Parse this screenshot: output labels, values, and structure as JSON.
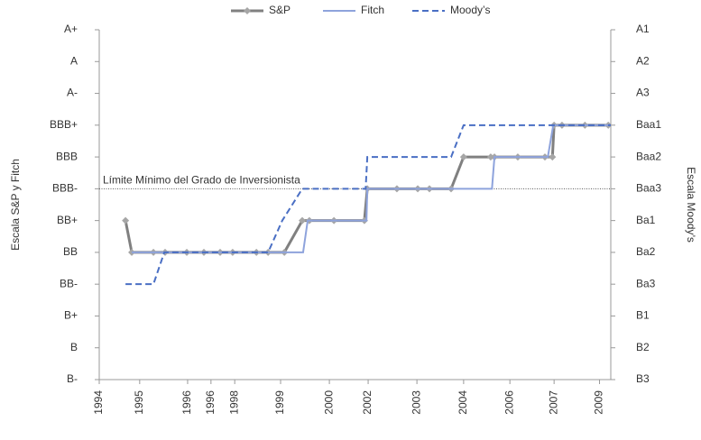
{
  "chart_data": {
    "type": "line",
    "x_label": null,
    "y_label": "Escala S&P y Fitch",
    "y2_label": "Escala Moody’s",
    "annotation": {
      "text": "Límite Mínimo del Grado de Inversionista",
      "value": 6
    },
    "xlim": [
      0,
      12.27
    ],
    "xticks": [
      {
        "value": 0,
        "label": "1994"
      },
      {
        "value": 0.97,
        "label": "1995"
      },
      {
        "value": 2.12,
        "label": "1996"
      },
      {
        "value": 2.68,
        "label": "1996"
      },
      {
        "value": 3.25,
        "label": "1998"
      },
      {
        "value": 4.35,
        "label": "1999"
      },
      {
        "value": 5.52,
        "label": "2000"
      },
      {
        "value": 6.45,
        "label": "2002"
      },
      {
        "value": 7.62,
        "label": "2003"
      },
      {
        "value": 8.74,
        "label": "2004"
      },
      {
        "value": 9.85,
        "label": "2006"
      },
      {
        "value": 10.91,
        "label": "2007"
      },
      {
        "value": 12,
        "label": "2009"
      }
    ],
    "ylim": [
      0,
      11
    ],
    "yticks": [
      {
        "value": 0,
        "label": "B-"
      },
      {
        "value": 1,
        "label": "B"
      },
      {
        "value": 2,
        "label": "B+"
      },
      {
        "value": 3,
        "label": "BB-"
      },
      {
        "value": 4,
        "label": "BB"
      },
      {
        "value": 5,
        "label": "BB+"
      },
      {
        "value": 6,
        "label": "BBB-"
      },
      {
        "value": 7,
        "label": "BBB"
      },
      {
        "value": 8,
        "label": "BBB+"
      },
      {
        "value": 9,
        "label": "A-"
      },
      {
        "value": 10,
        "label": "A"
      },
      {
        "value": 11,
        "label": "A+"
      }
    ],
    "y2lim": [
      0,
      11
    ],
    "y2ticks": [
      {
        "value": 0,
        "label": "B3"
      },
      {
        "value": 1,
        "label": "B2"
      },
      {
        "value": 2,
        "label": "B1"
      },
      {
        "value": 3,
        "label": "Ba3"
      },
      {
        "value": 4,
        "label": "Ba2"
      },
      {
        "value": 5,
        "label": "Ba1"
      },
      {
        "value": 6,
        "label": "Baa3"
      },
      {
        "value": 7,
        "label": "Baa2"
      },
      {
        "value": 8,
        "label": "Baa1"
      },
      {
        "value": 9,
        "label": "A3"
      },
      {
        "value": 10,
        "label": "A2"
      },
      {
        "value": 11,
        "label": "A1"
      }
    ],
    "series": [
      {
        "name": "S&P",
        "color": "#808080",
        "width": 3,
        "dashed": false,
        "markers": true,
        "x": [
          0.63,
          0.78,
          1.3,
          1.58,
          2.1,
          2.51,
          2.9,
          3.2,
          3.77,
          4.05,
          4.44,
          4.87,
          5.04,
          5.63,
          6.36,
          6.43,
          7.14,
          7.64,
          7.92,
          8.44,
          8.74,
          9.39,
          9.48,
          10.04,
          10.69,
          10.87,
          10.91,
          11.1,
          11.65,
          12.21
        ],
        "values": [
          5,
          4,
          4,
          4,
          4,
          4,
          4,
          4,
          4,
          4,
          4,
          5,
          5,
          5,
          5,
          6,
          6,
          6,
          6,
          6,
          7,
          7,
          7,
          7,
          7,
          7,
          8,
          8,
          8,
          8
        ]
      },
      {
        "name": "Fitch",
        "color": "#8ea3dc",
        "width": 2,
        "dashed": false,
        "markers": false,
        "x": [
          0.78,
          4.89,
          5.0,
          6.41,
          6.43,
          9.42,
          9.48,
          10.76,
          10.89,
          12.27
        ],
        "values": [
          4,
          4,
          5,
          5,
          6,
          6,
          7,
          7,
          8,
          8
        ]
      },
      {
        "name": "Moody’s",
        "color": "#4a6fc4",
        "width": 2,
        "dashed": true,
        "markers": false,
        "x": [
          0.63,
          1.3,
          1.56,
          4.05,
          4.39,
          4.87,
          6.39,
          6.43,
          8.44,
          8.74,
          12.27
        ],
        "values": [
          3,
          3,
          4,
          4,
          5,
          6,
          6,
          7,
          7,
          8,
          8
        ]
      }
    ]
  }
}
